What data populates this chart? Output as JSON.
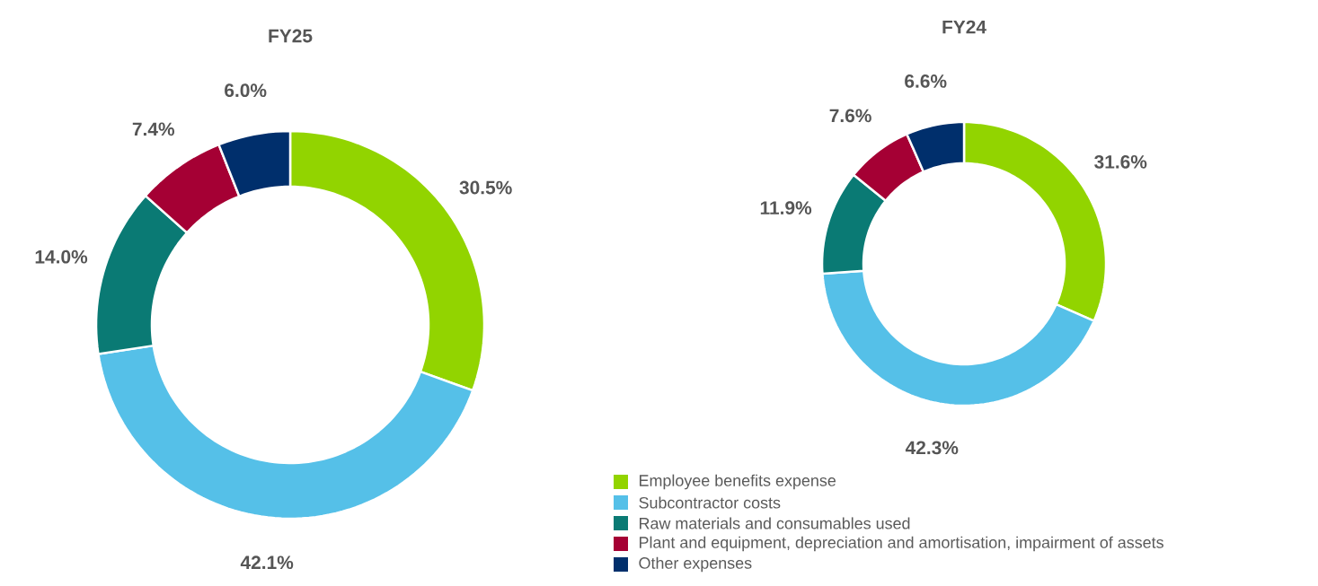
{
  "chart_data": [
    {
      "type": "donut",
      "title": "FY25",
      "categories": [
        null,
        null,
        null,
        null,
        null
      ],
      "values": [
        30.5,
        42.1,
        14.0,
        7.4,
        6.0
      ],
      "value_labels": [
        "30.5%",
        "42.1%",
        "14.0%",
        "7.4%",
        "6.0%"
      ],
      "colors": [
        "#92d400",
        "#55c0e8",
        "#0a7a74",
        "#a50034",
        "#002f6c"
      ]
    },
    {
      "type": "donut",
      "title": "FY24",
      "categories": [
        "Employee benefits expense",
        "Subcontractor costs",
        "Raw materials and consumables used",
        "Plant and equipment, depreciation and amortisation, impairment of assets",
        "Other expenses"
      ],
      "values": [
        31.6,
        42.3,
        11.9,
        7.6,
        6.6
      ],
      "value_labels": [
        "31.6%",
        "42.3%",
        "11.9%",
        "7.6%",
        "6.6%"
      ],
      "colors": [
        "#92d400",
        "#55c0e8",
        "#0a7a74",
        "#a50034",
        "#002f6c"
      ],
      "legend": "bottom left"
    }
  ]
}
